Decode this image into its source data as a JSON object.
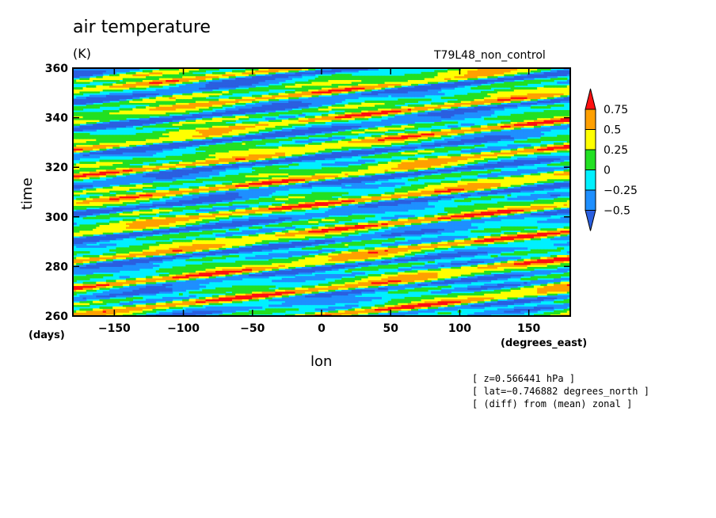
{
  "chart_data": {
    "type": "heatmap",
    "title": "air temperature",
    "units": "(K)",
    "run_label": "T79L48_non_control",
    "xlabel": "lon",
    "xunit": "(degrees_east)",
    "ylabel": "time",
    "yunit": "(days)",
    "xlim": [
      -180,
      180
    ],
    "ylim": [
      260,
      360
    ],
    "x_ticks": [
      -150,
      -100,
      -50,
      0,
      50,
      100,
      150
    ],
    "y_ticks": [
      260,
      280,
      300,
      320,
      340,
      360
    ],
    "colorbar": {
      "levels": [
        -0.5,
        -0.25,
        0,
        0.25,
        0.5,
        0.75
      ],
      "labels": [
        "0.75",
        "0.5",
        "0.25",
        "0",
        "−0.25",
        "−0.5"
      ],
      "colors": [
        "#2a5fe0",
        "#1e8fff",
        "#00f0ff",
        "#22e022",
        "#ffff00",
        "#ffa000",
        "#ff1010"
      ]
    },
    "info_lines": [
      "[ z=0.566441 hPa ]",
      "[ lat=−0.746882 degrees_north ]",
      "[ (diff) from (mean) zonal ]"
    ]
  }
}
